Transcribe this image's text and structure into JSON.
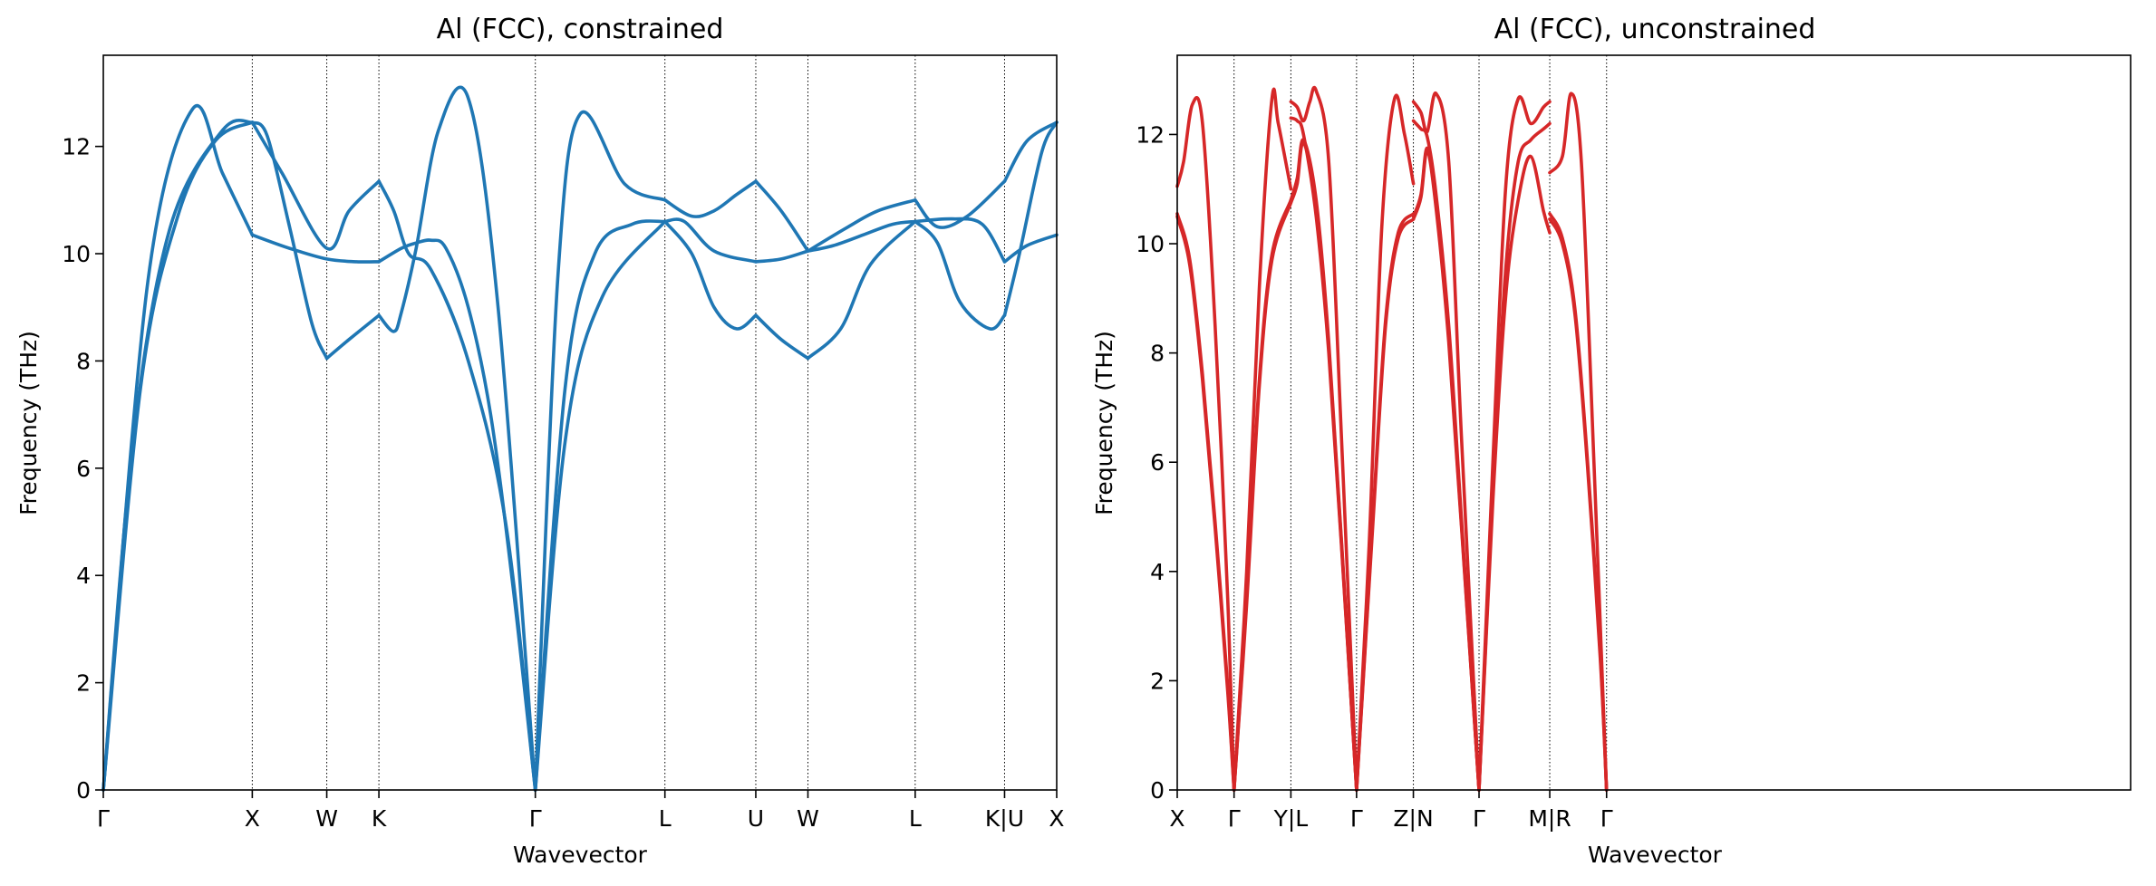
{
  "chart_data": [
    {
      "type": "line",
      "title": "Al (FCC), constrained",
      "xlabel": "Wavevector",
      "ylabel": "Frequency (THz)",
      "ylim": [
        0,
        13.7
      ],
      "yticks": [
        0,
        2,
        4,
        6,
        8,
        10,
        12
      ],
      "grid": "dotted vertical lines at high-symmetry points",
      "color": "#1f77b4",
      "xlim": [
        0,
        6.4
      ],
      "xticks": [
        {
          "x": 0.0,
          "label": "Γ"
        },
        {
          "x": 1.0,
          "label": "X"
        },
        {
          "x": 1.5,
          "label": "W"
        },
        {
          "x": 1.85,
          "label": "K"
        },
        {
          "x": 2.9,
          "label": "Γ"
        },
        {
          "x": 3.77,
          "label": "L"
        },
        {
          "x": 4.38,
          "label": "U"
        },
        {
          "x": 4.73,
          "label": "W"
        },
        {
          "x": 5.45,
          "label": "L"
        },
        {
          "x": 6.05,
          "label": "K|U"
        },
        {
          "x": 6.4,
          "label": "X"
        }
      ],
      "series": [
        {
          "x": [
            0,
            0.3,
            0.6,
            0.8,
            1.0
          ],
          "y": [
            0,
            9.5,
            12.7,
            11.5,
            10.35
          ]
        },
        {
          "x": [
            1.0,
            1.25,
            1.5,
            1.7,
            1.85
          ],
          "y": [
            10.35,
            10.1,
            9.9,
            9.85,
            9.85
          ]
        },
        {
          "x": [
            1.85,
            2.0,
            2.1,
            2.2,
            2.3,
            2.45,
            2.6,
            2.75,
            2.9
          ],
          "y": [
            9.85,
            10.1,
            10.2,
            10.25,
            10.1,
            9.0,
            7.0,
            3.8,
            0
          ]
        },
        {
          "x": [
            2.9,
            3.1,
            3.3,
            3.55,
            3.77
          ],
          "y": [
            0,
            7.5,
            10.0,
            10.55,
            10.6
          ]
        },
        {
          "x": [
            3.77,
            3.9,
            4.1,
            4.38
          ],
          "y": [
            10.6,
            10.6,
            10.05,
            9.85
          ]
        },
        {
          "x": [
            4.38,
            4.55,
            4.73
          ],
          "y": [
            9.85,
            9.9,
            10.05
          ]
        },
        {
          "x": [
            4.73,
            4.9,
            5.1,
            5.3,
            5.45
          ],
          "y": [
            10.05,
            10.15,
            10.35,
            10.55,
            10.6
          ]
        },
        {
          "x": [
            5.45,
            5.7,
            5.9,
            6.05
          ],
          "y": [
            10.6,
            10.65,
            10.55,
            9.85
          ]
        },
        {
          "x": [
            6.05,
            6.2,
            6.4
          ],
          "y": [
            9.85,
            10.15,
            10.35
          ]
        },
        {
          "x": [
            0,
            0.25,
            0.5,
            0.75,
            1.0
          ],
          "y": [
            0,
            7.5,
            10.7,
            12.1,
            12.45
          ]
        },
        {
          "x": [
            1.0,
            1.1,
            1.25,
            1.4,
            1.5
          ],
          "y": [
            12.45,
            12.2,
            10.5,
            8.7,
            8.05
          ]
        },
        {
          "x": [
            1.5,
            1.65,
            1.85
          ],
          "y": [
            8.05,
            8.4,
            8.85
          ]
        },
        {
          "x": [
            1.85,
            1.95,
            2.0,
            2.1,
            2.25,
            2.45,
            2.65,
            2.9
          ],
          "y": [
            8.85,
            8.55,
            8.9,
            10.1,
            12.3,
            12.9,
            9.0,
            0
          ]
        },
        {
          "x": [
            2.9,
            3.05,
            3.2,
            3.5,
            3.77
          ],
          "y": [
            0,
            9.5,
            12.6,
            11.3,
            11.0
          ]
        },
        {
          "x": [
            3.77,
            3.95,
            4.1,
            4.25,
            4.38
          ],
          "y": [
            11.0,
            10.7,
            10.8,
            11.1,
            11.35
          ]
        },
        {
          "x": [
            4.38,
            4.55,
            4.73
          ],
          "y": [
            11.35,
            10.8,
            10.05
          ]
        },
        {
          "x": [
            4.73,
            5.0,
            5.2,
            5.45
          ],
          "y": [
            10.05,
            10.5,
            10.8,
            11.0
          ]
        },
        {
          "x": [
            5.45,
            5.6,
            5.8,
            6.05
          ],
          "y": [
            11.0,
            10.5,
            10.7,
            11.35
          ]
        },
        {
          "x": [
            6.05,
            6.2,
            6.4
          ],
          "y": [
            11.35,
            12.1,
            12.45
          ]
        },
        {
          "x": [
            0,
            0.2,
            0.45,
            0.8,
            1.0
          ],
          "y": [
            0,
            6.5,
            10.5,
            12.3,
            12.45
          ]
        },
        {
          "x": [
            1.0,
            1.2,
            1.5,
            1.65,
            1.85
          ],
          "y": [
            12.45,
            11.5,
            10.1,
            10.8,
            11.35
          ]
        },
        {
          "x": [
            1.85,
            1.95,
            2.05,
            2.2,
            2.45,
            2.7,
            2.9
          ],
          "y": [
            11.35,
            10.8,
            10.0,
            9.7,
            8.0,
            5.0,
            0
          ]
        },
        {
          "x": [
            2.9,
            3.1,
            3.35,
            3.77
          ],
          "y": [
            0,
            6.5,
            9.2,
            10.6
          ]
        },
        {
          "x": [
            3.77,
            3.95,
            4.1,
            4.25,
            4.38
          ],
          "y": [
            10.6,
            10.0,
            9.0,
            8.6,
            8.85
          ]
        },
        {
          "x": [
            4.38,
            4.55,
            4.73
          ],
          "y": [
            8.85,
            8.4,
            8.05
          ]
        },
        {
          "x": [
            4.73,
            4.95,
            5.15,
            5.45
          ],
          "y": [
            8.05,
            8.6,
            9.8,
            10.6
          ]
        },
        {
          "x": [
            5.45,
            5.6,
            5.75,
            5.95,
            6.05
          ],
          "y": [
            10.6,
            10.2,
            9.1,
            8.6,
            8.85
          ]
        },
        {
          "x": [
            6.05,
            6.15,
            6.3,
            6.4
          ],
          "y": [
            8.85,
            10.0,
            11.9,
            12.45
          ]
        }
      ]
    },
    {
      "type": "line",
      "title": "Al (FCC), unconstrained",
      "xlabel": "Wavevector",
      "ylabel": "Frequency (THz)",
      "ylim": [
        0,
        13.45
      ],
      "yticks": [
        0,
        2,
        4,
        6,
        8,
        10,
        12
      ],
      "grid": "dotted vertical lines at high-symmetry points",
      "color": "#d62728",
      "xlim": [
        0,
        7.55
      ],
      "xticks": [
        {
          "x": 0.0,
          "label": "X"
        },
        {
          "x": 0.45,
          "label": "Γ"
        },
        {
          "x": 0.9,
          "label": "Y|L"
        },
        {
          "x": 1.42,
          "label": "Γ"
        },
        {
          "x": 1.87,
          "label": "Z|N"
        },
        {
          "x": 2.39,
          "label": "Γ"
        },
        {
          "x": 2.95,
          "label": "M|R"
        },
        {
          "x": 3.4,
          "label": "Γ"
        }
      ],
      "series": [
        {
          "x": [
            0,
            0.05,
            0.12,
            0.2,
            0.3,
            0.4,
            0.45
          ],
          "y": [
            11.05,
            11.5,
            12.55,
            12.2,
            8.5,
            3.5,
            0
          ]
        },
        {
          "x": [
            0,
            0.1,
            0.2,
            0.3,
            0.4,
            0.45
          ],
          "y": [
            10.5,
            9.6,
            7.5,
            4.8,
            1.8,
            0
          ]
        },
        {
          "x": [
            0,
            0.1,
            0.2,
            0.3,
            0.4,
            0.45
          ],
          "y": [
            10.55,
            9.7,
            7.6,
            4.9,
            1.9,
            0
          ]
        },
        {
          "x": [
            0.45,
            0.55,
            0.65,
            0.75,
            0.8,
            0.9
          ],
          "y": [
            0,
            4.0,
            9.2,
            12.65,
            12.2,
            11.0
          ]
        },
        {
          "x": [
            0.45,
            0.55,
            0.65,
            0.75,
            0.9
          ],
          "y": [
            0,
            3.5,
            7.5,
            9.8,
            10.8
          ]
        },
        {
          "x": [
            0.45,
            0.55,
            0.65,
            0.75,
            0.9
          ],
          "y": [
            0,
            3.4,
            7.4,
            9.7,
            10.75
          ]
        },
        {
          "x": [
            0.9,
            0.95,
            1.0,
            1.05,
            1.1,
            1.2,
            1.3,
            1.42
          ],
          "y": [
            12.6,
            12.5,
            12.25,
            12.6,
            12.8,
            11.5,
            6.5,
            0
          ]
        },
        {
          "x": [
            0.9,
            0.95,
            1.0,
            1.1,
            1.2,
            1.3,
            1.42
          ],
          "y": [
            12.3,
            12.25,
            12.0,
            10.5,
            8.0,
            4.5,
            0
          ]
        },
        {
          "x": [
            0.9,
            0.95,
            1.0,
            1.1,
            1.2,
            1.3,
            1.42
          ],
          "y": [
            10.8,
            11.2,
            11.9,
            10.8,
            8.2,
            4.6,
            0
          ]
        },
        {
          "x": [
            0.9,
            0.95,
            1.0,
            1.1,
            1.2,
            1.3,
            1.42
          ],
          "y": [
            10.75,
            11.1,
            11.85,
            10.7,
            8.1,
            4.55,
            0
          ]
        },
        {
          "x": [
            1.42,
            1.52,
            1.62,
            1.72,
            1.8,
            1.87
          ],
          "y": [
            0,
            4.5,
            10.3,
            12.65,
            12.0,
            11.1
          ]
        },
        {
          "x": [
            1.42,
            1.55,
            1.65,
            1.75,
            1.87
          ],
          "y": [
            0,
            5.0,
            8.6,
            10.2,
            10.55
          ]
        },
        {
          "x": [
            1.42,
            1.55,
            1.65,
            1.75,
            1.87
          ],
          "y": [
            0,
            4.9,
            8.5,
            10.1,
            10.45
          ]
        },
        {
          "x": [
            1.87,
            1.93,
            1.98,
            2.05,
            2.15,
            2.25,
            2.39
          ],
          "y": [
            12.6,
            12.4,
            12.05,
            12.75,
            11.5,
            6.5,
            0
          ]
        },
        {
          "x": [
            1.87,
            1.93,
            1.98,
            2.05,
            2.15,
            2.25,
            2.39
          ],
          "y": [
            12.25,
            12.1,
            11.95,
            10.9,
            8.5,
            5.0,
            0
          ]
        },
        {
          "x": [
            1.87,
            1.93,
            1.98,
            2.05,
            2.15,
            2.25,
            2.39
          ],
          "y": [
            10.5,
            10.9,
            11.75,
            10.7,
            8.3,
            4.9,
            0
          ]
        },
        {
          "x": [
            1.87,
            1.93,
            1.98,
            2.05,
            2.15,
            2.25,
            2.39
          ],
          "y": [
            10.45,
            10.85,
            11.7,
            10.65,
            8.2,
            4.85,
            0
          ]
        },
        {
          "x": [
            2.39,
            2.5,
            2.6,
            2.7,
            2.8,
            2.9,
            2.95
          ],
          "y": [
            0,
            6.0,
            11.0,
            12.65,
            12.2,
            12.5,
            12.6
          ]
        },
        {
          "x": [
            2.39,
            2.5,
            2.6,
            2.7,
            2.8,
            2.9,
            2.95
          ],
          "y": [
            0,
            5.5,
            9.5,
            11.5,
            11.9,
            12.1,
            12.2
          ]
        },
        {
          "x": [
            2.39,
            2.5,
            2.6,
            2.7,
            2.8,
            2.9,
            2.95
          ],
          "y": [
            0,
            5.3,
            9.0,
            10.8,
            11.6,
            10.6,
            10.2
          ]
        },
        {
          "x": [
            2.95,
            3.05,
            3.12,
            3.2,
            3.3,
            3.4
          ],
          "y": [
            11.3,
            11.6,
            12.75,
            11.5,
            6.0,
            0
          ]
        },
        {
          "x": [
            2.95,
            3.05,
            3.15,
            3.25,
            3.35,
            3.4
          ],
          "y": [
            10.55,
            10.1,
            8.8,
            6.0,
            2.5,
            0
          ]
        },
        {
          "x": [
            2.95,
            3.05,
            3.15,
            3.25,
            3.35,
            3.4
          ],
          "y": [
            10.45,
            10.0,
            8.7,
            5.9,
            2.4,
            0
          ]
        }
      ]
    }
  ]
}
